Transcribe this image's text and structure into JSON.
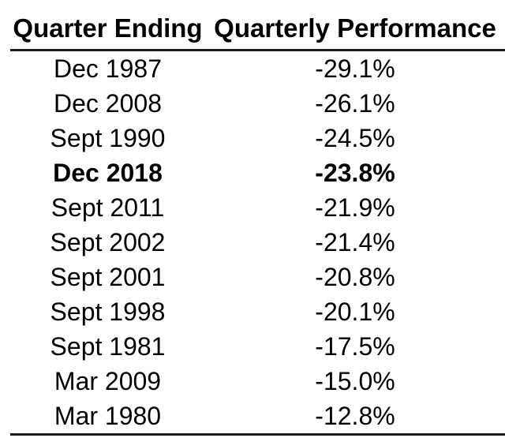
{
  "chart_data": {
    "type": "table",
    "columns": [
      "Quarter Ending",
      "Quarterly Performance"
    ],
    "rows": [
      {
        "quarter": "Dec 1987",
        "performance": "-29.1%",
        "value": -29.1,
        "highlighted": false
      },
      {
        "quarter": "Dec 2008",
        "performance": "-26.1%",
        "value": -26.1,
        "highlighted": false
      },
      {
        "quarter": "Sept 1990",
        "performance": "-24.5%",
        "value": -24.5,
        "highlighted": false
      },
      {
        "quarter": "Dec 2018",
        "performance": "-23.8%",
        "value": -23.8,
        "highlighted": true
      },
      {
        "quarter": "Sept 2011",
        "performance": "-21.9%",
        "value": -21.9,
        "highlighted": false
      },
      {
        "quarter": "Sept 2002",
        "performance": "-21.4%",
        "value": -21.4,
        "highlighted": false
      },
      {
        "quarter": "Sept 2001",
        "performance": "-20.8%",
        "value": -20.8,
        "highlighted": false
      },
      {
        "quarter": "Sept 1998",
        "performance": "-20.1%",
        "value": -20.1,
        "highlighted": false
      },
      {
        "quarter": "Sept 1981",
        "performance": "-17.5%",
        "value": -17.5,
        "highlighted": false
      },
      {
        "quarter": "Mar 2009",
        "performance": "-15.0%",
        "value": -15.0,
        "highlighted": false
      },
      {
        "quarter": "Mar 1980",
        "performance": "-12.8%",
        "value": -12.8,
        "highlighted": false
      }
    ]
  },
  "colors": {
    "text": "#000000",
    "rule": "#1c1c1c",
    "background": "#ffffff"
  }
}
